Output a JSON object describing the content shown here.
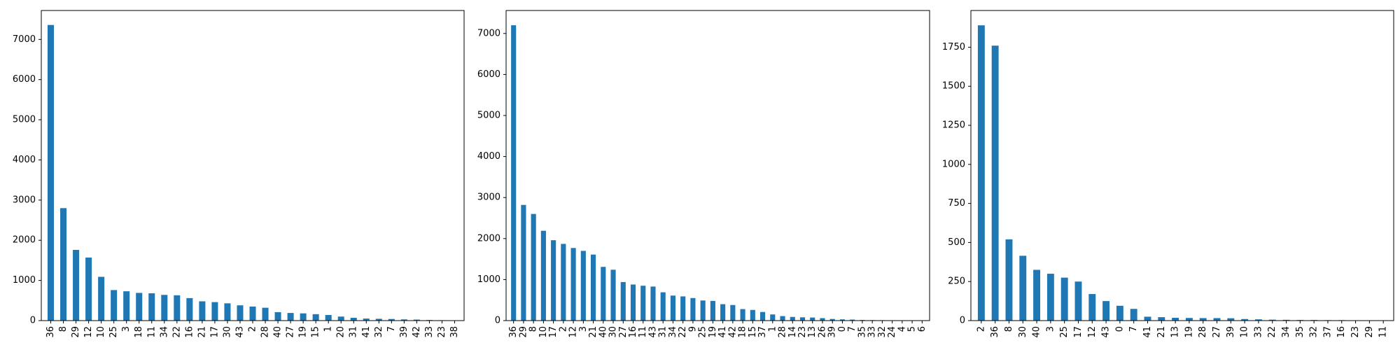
{
  "chart_data": [
    {
      "type": "bar",
      "title": "",
      "xlabel": "",
      "ylabel": "",
      "grid": false,
      "legend": "none",
      "color": "#1f77b4",
      "ylim": [
        0,
        7720
      ],
      "yticks": [
        0,
        1000,
        2000,
        3000,
        4000,
        5000,
        6000,
        7000
      ],
      "categories": [
        "36",
        "8",
        "29",
        "12",
        "10",
        "25",
        "3",
        "18",
        "11",
        "34",
        "22",
        "16",
        "21",
        "17",
        "30",
        "43",
        "2",
        "28",
        "40",
        "27",
        "19",
        "15",
        "1",
        "20",
        "31",
        "41",
        "32",
        "7",
        "39",
        "42",
        "33",
        "23",
        "38"
      ],
      "values": [
        7360,
        2800,
        1760,
        1570,
        1090,
        760,
        730,
        690,
        680,
        640,
        630,
        560,
        480,
        460,
        430,
        380,
        350,
        320,
        210,
        190,
        180,
        160,
        140,
        100,
        70,
        50,
        45,
        40,
        30,
        25,
        15,
        10,
        5
      ]
    },
    {
      "type": "bar",
      "title": "",
      "xlabel": "",
      "ylabel": "",
      "grid": false,
      "legend": "none",
      "color": "#1f77b4",
      "ylim": [
        0,
        7560
      ],
      "yticks": [
        0,
        1000,
        2000,
        3000,
        4000,
        5000,
        6000,
        7000
      ],
      "categories": [
        "36",
        "29",
        "8",
        "10",
        "17",
        "2",
        "12",
        "3",
        "21",
        "40",
        "30",
        "27",
        "16",
        "11",
        "43",
        "31",
        "34",
        "22",
        "9",
        "25",
        "19",
        "41",
        "42",
        "18",
        "15",
        "37",
        "1",
        "28",
        "14",
        "23",
        "13",
        "26",
        "39",
        "0",
        "7",
        "35",
        "33",
        "32",
        "24",
        "4",
        "5",
        "6"
      ],
      "values": [
        7200,
        2820,
        2600,
        2190,
        1960,
        1870,
        1770,
        1700,
        1610,
        1310,
        1240,
        940,
        880,
        850,
        830,
        690,
        610,
        590,
        550,
        490,
        480,
        400,
        380,
        280,
        260,
        210,
        150,
        110,
        90,
        80,
        75,
        60,
        40,
        30,
        25,
        15,
        12,
        10,
        8,
        6,
        5,
        3
      ]
    },
    {
      "type": "bar",
      "title": "",
      "xlabel": "",
      "ylabel": "",
      "grid": false,
      "legend": "none",
      "color": "#1f77b4",
      "ylim": [
        0,
        1985
      ],
      "yticks": [
        0,
        250,
        500,
        750,
        1000,
        1250,
        1500,
        1750
      ],
      "categories": [
        "2",
        "36",
        "8",
        "30",
        "40",
        "3",
        "25",
        "17",
        "12",
        "43",
        "0",
        "7",
        "41",
        "21",
        "13",
        "19",
        "28",
        "27",
        "39",
        "10",
        "33",
        "22",
        "34",
        "35",
        "32",
        "37",
        "16",
        "23",
        "29",
        "11"
      ],
      "values": [
        1890,
        1760,
        520,
        415,
        325,
        300,
        275,
        250,
        170,
        125,
        95,
        75,
        25,
        22,
        18,
        17,
        16,
        16,
        15,
        10,
        8,
        6,
        5,
        4,
        4,
        3,
        3,
        2,
        2,
        1
      ]
    }
  ]
}
